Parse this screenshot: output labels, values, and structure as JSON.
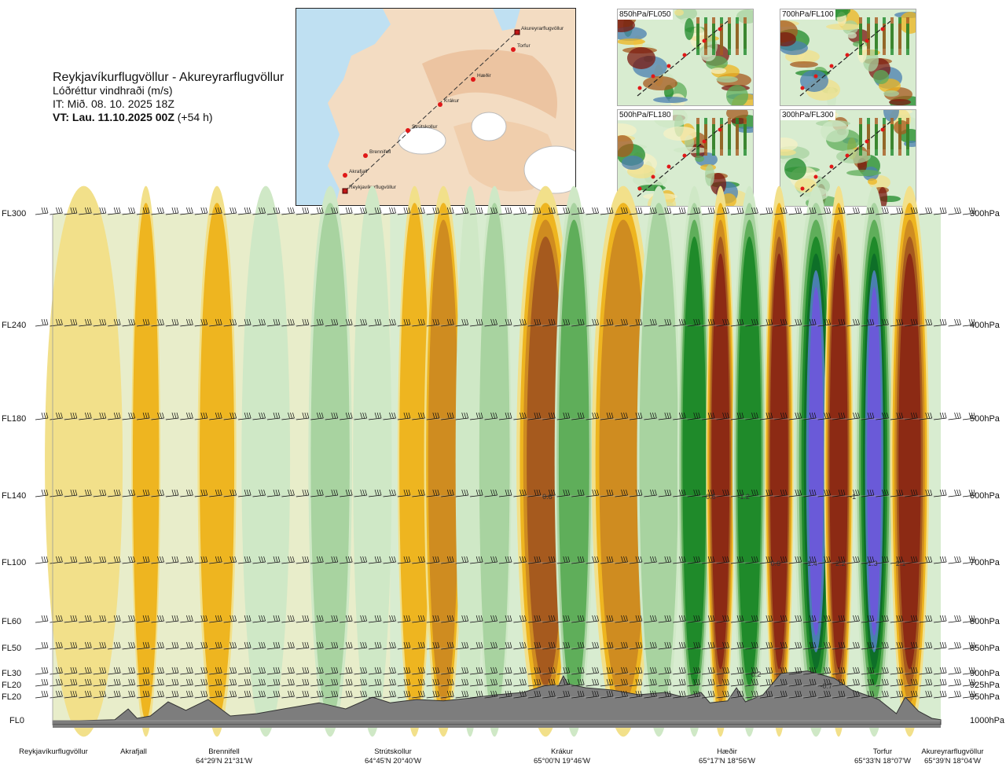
{
  "header": {
    "route": "Reykjavíkurflugvöllur - Akureyrarflugvöllur",
    "variable": "Lóðréttur vindhraði (m/s)",
    "issue_time": "IT: Mið. 08. 10. 2025 18Z",
    "valid_time_bold": "VT: Lau. 11.10.2025 00Z",
    "valid_time_offset": "(+54 h)"
  },
  "route_map": {
    "waypoints": [
      {
        "name": "Akureyrarflugvöllur",
        "type": "airport"
      },
      {
        "name": "Torfur",
        "type": "point"
      },
      {
        "name": "Hæðir",
        "type": "point"
      },
      {
        "name": "Krákur",
        "type": "point"
      },
      {
        "name": "Strútskollur",
        "type": "point"
      },
      {
        "name": "Brennifell",
        "type": "point"
      },
      {
        "name": "Akrafjall",
        "type": "point"
      },
      {
        "name": "Reykjavíkurflugvöllur",
        "type": "airport"
      }
    ]
  },
  "mini_maps": [
    {
      "label": "850hPa/FL050"
    },
    {
      "label": "700hPa/FL100"
    },
    {
      "label": "500hPa/FL180"
    },
    {
      "label": "300hPa/FL300"
    }
  ],
  "chart_data": {
    "type": "heatmap",
    "title": "Reykjavíkurflugvöllur - Akureyrarflugvöllur",
    "variable": "Lóðréttur vindhraði (m/s)",
    "flight_levels": [
      "FL300",
      "FL240",
      "FL180",
      "FL140",
      "FL100",
      "FL60",
      "FL50",
      "FL30",
      "FL20",
      "FL20",
      "FL0"
    ],
    "pressure_levels": [
      "300hPa",
      "400hPa",
      "500hPa",
      "600hPa",
      "700hPa",
      "800hPa",
      "850hPa",
      "900hPa",
      "925hPa",
      "950hPa",
      "1000hPa"
    ],
    "pressure_values": [
      300,
      400,
      500,
      600,
      700,
      800,
      850,
      900,
      925,
      950,
      1000
    ],
    "ylim": [
      1000,
      300
    ],
    "xlim": [
      0,
      1
    ],
    "locations": [
      {
        "name": "Reykjavíkurflugvöllur",
        "coord": "",
        "pos": 0.0
      },
      {
        "name": "Akrafjall",
        "coord": "",
        "pos": 0.09
      },
      {
        "name": "Brennifell",
        "coord": "64°29'N 21°31'W",
        "pos": 0.19
      },
      {
        "name": "Strútskollur",
        "coord": "64°45'N 20°40'W",
        "pos": 0.375
      },
      {
        "name": "Krákur",
        "coord": "65°00'N 19°46'W",
        "pos": 0.573
      },
      {
        "name": "Hæðir",
        "coord": "65°17'N 18°56'W",
        "pos": 0.77
      },
      {
        "name": "Torfur",
        "coord": "65°33'N 18°07'W",
        "pos": 0.957
      },
      {
        "name": "Akureyrarflugvöllur",
        "coord": "65°39'N 18°04'W",
        "pos": 1.0
      }
    ],
    "contour_labels": [
      {
        "text": "0.6",
        "pos": 0.557,
        "p": 600
      },
      {
        "text": "0.6",
        "pos": 0.741,
        "p": 600
      },
      {
        "text": "-1.2",
        "pos": 0.778,
        "p": 600
      },
      {
        "text": "-1",
        "pos": 0.901,
        "p": 600
      },
      {
        "text": "0.6",
        "pos": 0.814,
        "p": 700
      },
      {
        "text": "-1.4",
        "pos": 0.854,
        "p": 700
      },
      {
        "text": "2.2",
        "pos": 0.887,
        "p": 700
      },
      {
        "text": "-1.3",
        "pos": 0.922,
        "p": 700
      },
      {
        "text": "2.1",
        "pos": 0.955,
        "p": 700
      },
      {
        "text": "0.2",
        "pos": 0.792,
        "p": 900
      },
      {
        "text": "-0.7",
        "pos": 0.871,
        "p": 925
      }
    ],
    "wind_bands": [
      {
        "pos": 0.0,
        "w": 0.07,
        "v": -0.15
      },
      {
        "pos": 0.095,
        "w": 0.02,
        "v": -0.45
      },
      {
        "pos": 0.17,
        "w": 0.03,
        "v": -0.35
      },
      {
        "pos": 0.22,
        "w": 0.04,
        "v": 0.2
      },
      {
        "pos": 0.295,
        "w": 0.035,
        "v": 0.35
      },
      {
        "pos": 0.345,
        "w": 0.03,
        "v": 0.2
      },
      {
        "pos": 0.395,
        "w": 0.025,
        "v": -0.3
      },
      {
        "pos": 0.425,
        "w": 0.03,
        "v": -0.55
      },
      {
        "pos": 0.46,
        "w": 0.02,
        "v": 0.25
      },
      {
        "pos": 0.485,
        "w": 0.025,
        "v": 0.4
      },
      {
        "pos": 0.53,
        "w": 0.05,
        "v": -1.0
      },
      {
        "pos": 0.572,
        "w": 0.03,
        "v": 0.7
      },
      {
        "pos": 0.615,
        "w": 0.055,
        "v": -0.6
      },
      {
        "pos": 0.665,
        "w": 0.035,
        "v": 0.35
      },
      {
        "pos": 0.71,
        "w": 0.025,
        "v": 0.8
      },
      {
        "pos": 0.742,
        "w": 0.02,
        "v": -1.2
      },
      {
        "pos": 0.772,
        "w": 0.025,
        "v": 0.8
      },
      {
        "pos": 0.808,
        "w": 0.02,
        "v": -1.3
      },
      {
        "pos": 0.842,
        "w": 0.035,
        "v": 2.1
      },
      {
        "pos": 0.875,
        "w": 0.02,
        "v": -1.3
      },
      {
        "pos": 0.91,
        "w": 0.03,
        "v": 2.1
      },
      {
        "pos": 0.95,
        "w": 0.03,
        "v": -1.4
      }
    ],
    "terrain_hpa": [
      [
        0.0,
        1000
      ],
      [
        0.03,
        1000
      ],
      [
        0.07,
        998
      ],
      [
        0.085,
        975
      ],
      [
        0.095,
        995
      ],
      [
        0.11,
        990
      ],
      [
        0.13,
        960
      ],
      [
        0.15,
        978
      ],
      [
        0.175,
        955
      ],
      [
        0.2,
        990
      ],
      [
        0.23,
        985
      ],
      [
        0.26,
        975
      ],
      [
        0.3,
        962
      ],
      [
        0.33,
        975
      ],
      [
        0.36,
        950
      ],
      [
        0.38,
        962
      ],
      [
        0.41,
        955
      ],
      [
        0.44,
        958
      ],
      [
        0.47,
        952
      ],
      [
        0.5,
        945
      ],
      [
        0.53,
        940
      ],
      [
        0.555,
        925
      ],
      [
        0.57,
        925
      ],
      [
        0.575,
        905
      ],
      [
        0.58,
        922
      ],
      [
        0.6,
        930
      ],
      [
        0.63,
        935
      ],
      [
        0.66,
        945
      ],
      [
        0.69,
        940
      ],
      [
        0.71,
        950
      ],
      [
        0.73,
        940
      ],
      [
        0.74,
        962
      ],
      [
        0.76,
        958
      ],
      [
        0.77,
        930
      ],
      [
        0.78,
        960
      ],
      [
        0.8,
        945
      ],
      [
        0.82,
        900
      ],
      [
        0.85,
        895
      ],
      [
        0.88,
        910
      ],
      [
        0.9,
        935
      ],
      [
        0.93,
        955
      ],
      [
        0.95,
        985
      ],
      [
        0.96,
        950
      ],
      [
        0.975,
        980
      ],
      [
        0.99,
        995
      ],
      [
        1.0,
        998
      ]
    ],
    "barb_columns": 64
  }
}
